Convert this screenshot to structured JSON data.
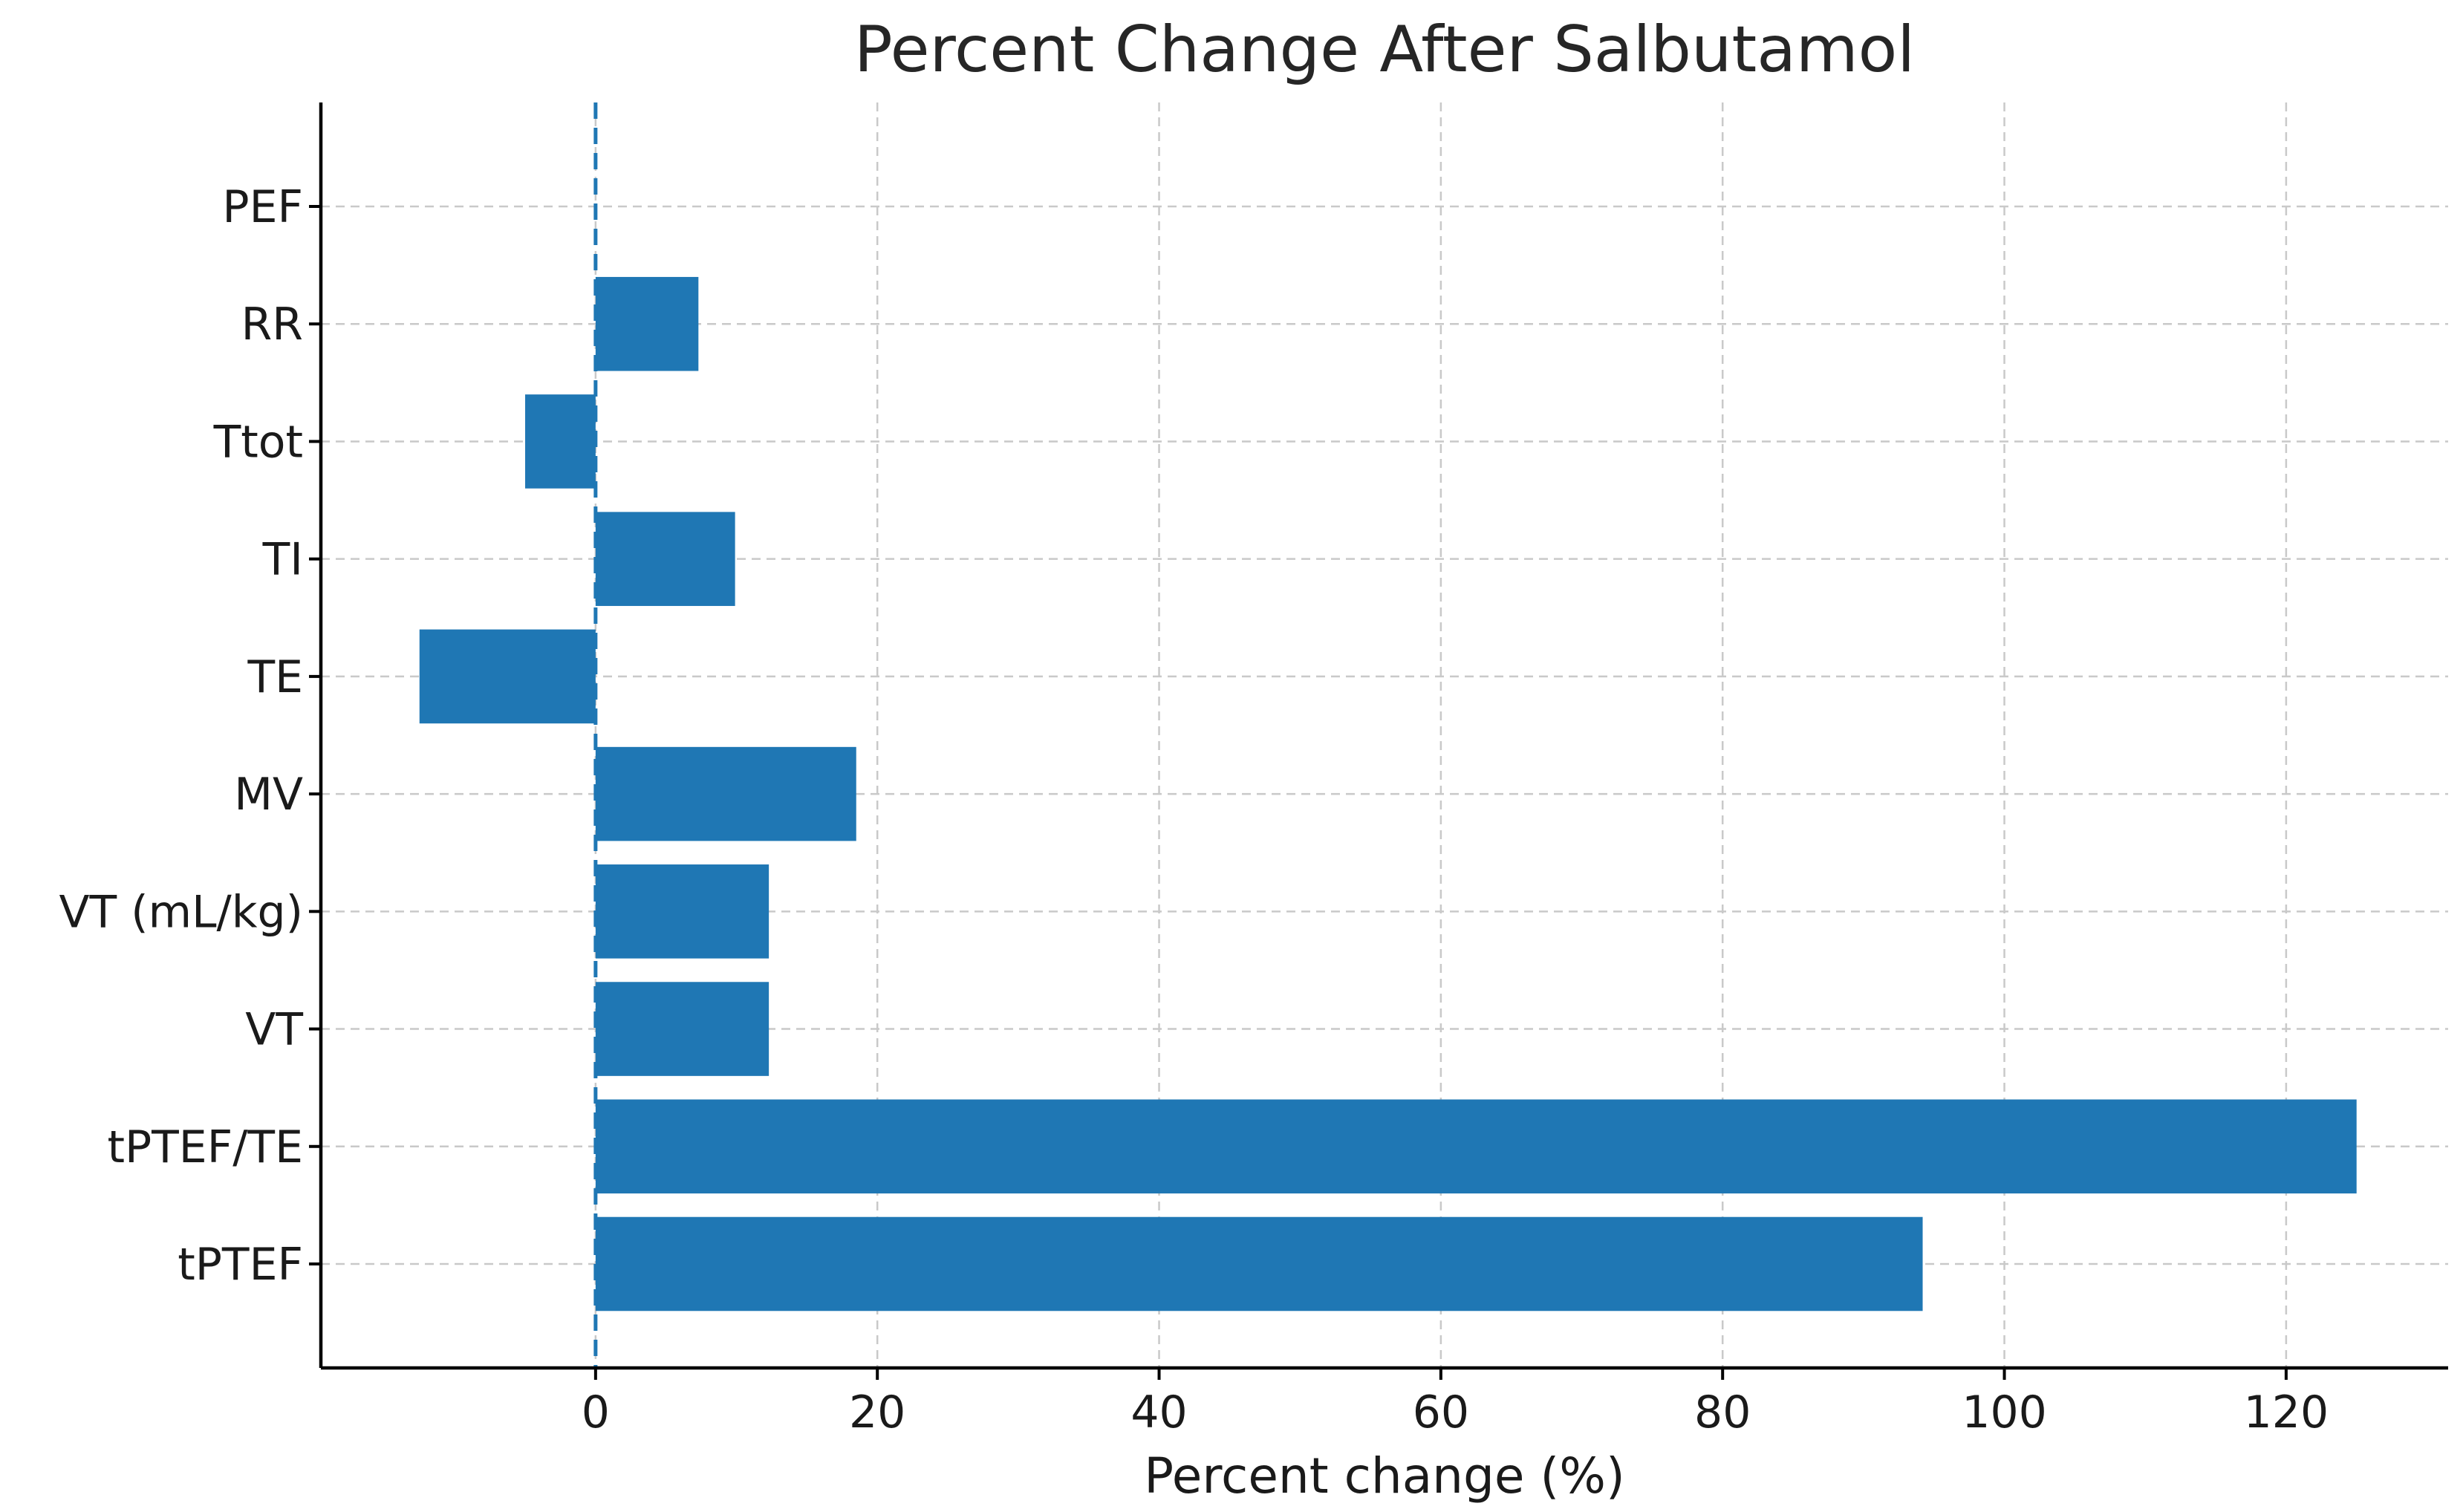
{
  "chart_data": {
    "type": "bar",
    "orientation": "horizontal",
    "title": "Percent Change After Salbutamol",
    "xlabel": "Percent change (%)",
    "ylabel": "",
    "categories": [
      "tPTEF",
      "tPTEF/TE",
      "VT",
      "VT (mL/kg)",
      "MV",
      "TE",
      "TI",
      "Ttot",
      "RR",
      "PEF"
    ],
    "values": [
      94.2,
      125.0,
      12.3,
      12.3,
      18.5,
      -12.5,
      9.9,
      -5.0,
      7.3,
      0
    ],
    "xlim": [
      -19.5,
      131.5
    ],
    "xticks": [
      0,
      20,
      40,
      60,
      80,
      100,
      120
    ],
    "grid": true,
    "reference_line": {
      "x": 0,
      "style": "dashed"
    },
    "bar_color": "#1f77b4"
  }
}
